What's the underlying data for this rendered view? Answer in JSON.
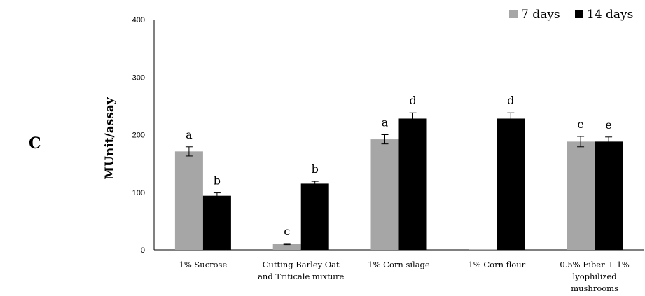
{
  "panel_label": "C",
  "chart_data": {
    "type": "bar",
    "ylabel": "MUnit/assay",
    "ylim": [
      0,
      400
    ],
    "yticks": [
      0,
      100,
      200,
      300,
      400
    ],
    "grid": false,
    "legend_position": "top-right",
    "categories": [
      [
        "1% Sucrose"
      ],
      [
        "Cutting Barley Oat",
        "and Triticale mixture"
      ],
      [
        "1% Corn silage"
      ],
      [
        "1% Corn flour"
      ],
      [
        "0.5% Fiber + 1%",
        "lyophilized",
        "mushrooms"
      ]
    ],
    "series": [
      {
        "name": "7 days",
        "color": "#a6a6a6",
        "values": [
          171,
          10,
          192,
          1,
          188
        ],
        "errors": [
          8,
          1,
          8,
          0,
          9
        ],
        "letters": [
          "a",
          "c",
          "a",
          "",
          "e"
        ]
      },
      {
        "name": "14 days",
        "color": "#000000",
        "values": [
          94,
          115,
          228,
          228,
          188
        ],
        "errors": [
          5,
          4,
          10,
          10,
          8
        ],
        "letters": [
          "b",
          "b",
          "d",
          "d",
          "e"
        ]
      }
    ]
  }
}
